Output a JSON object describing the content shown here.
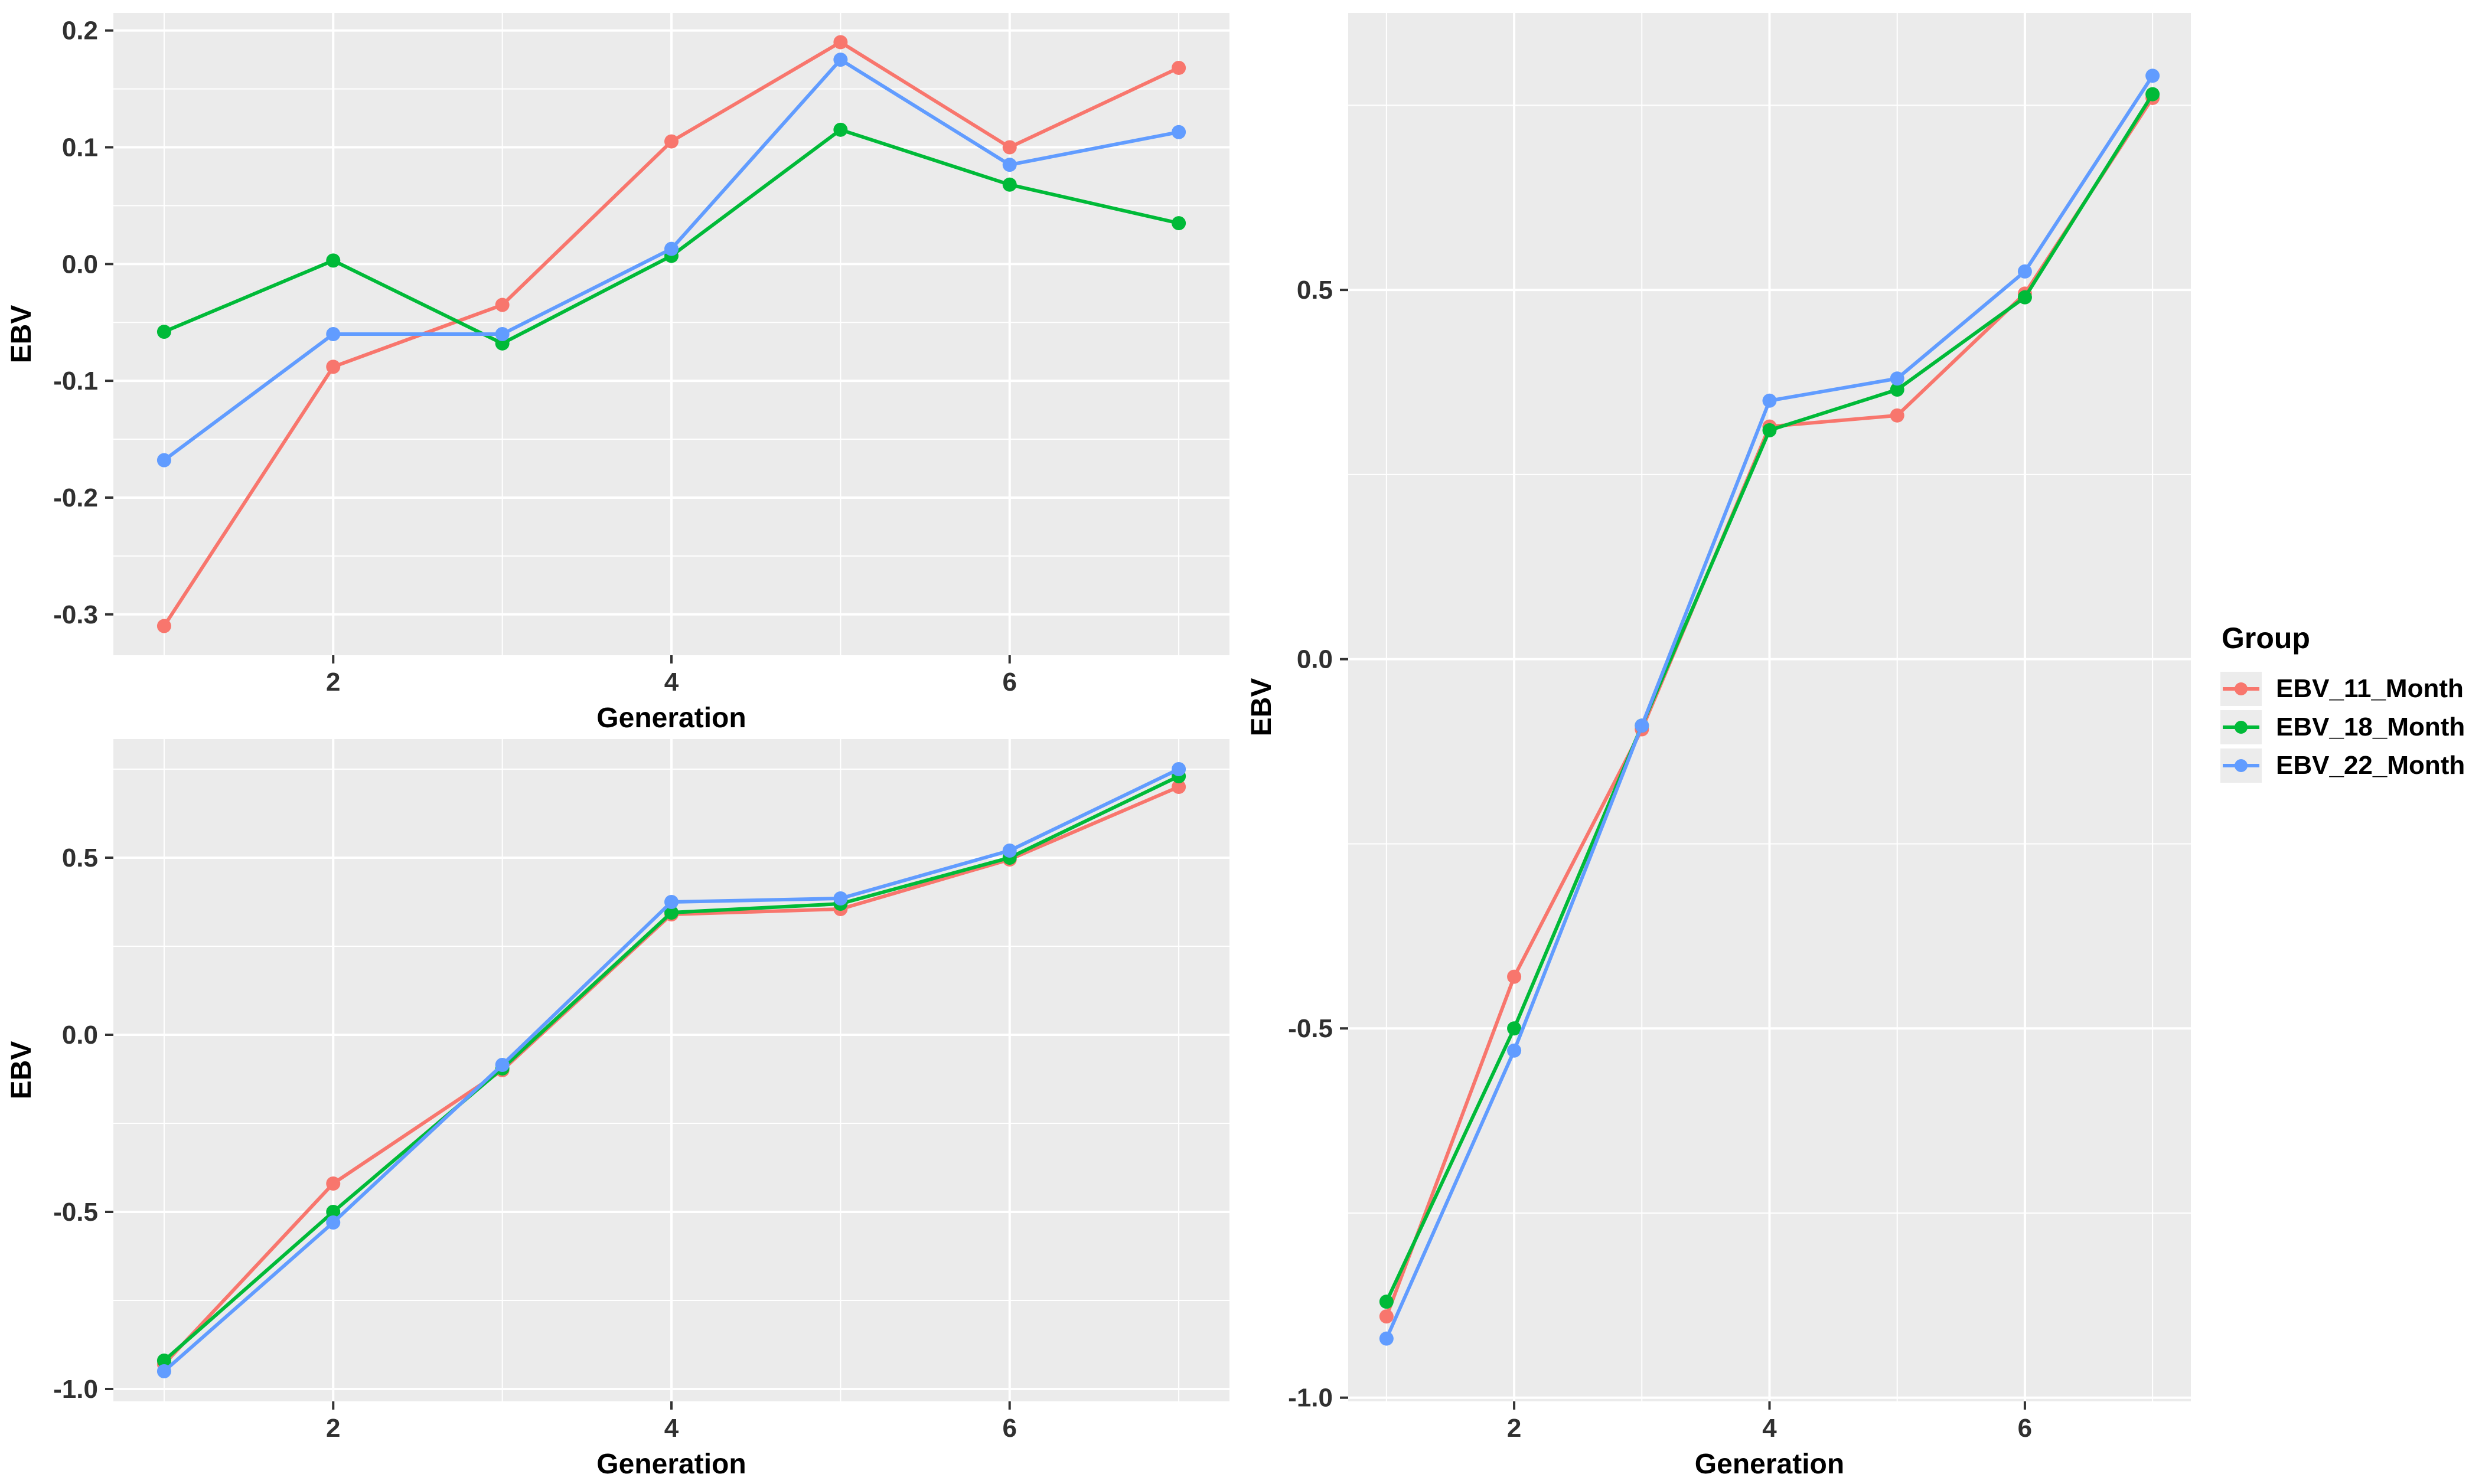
{
  "figure": {
    "panel_background": "#EBEBEB",
    "grid_color": "#FFFFFF",
    "tick_color": "#333333",
    "axis_text_color": "#303030",
    "axis_title_color": "#000000"
  },
  "legend": {
    "title": "Group",
    "entries": [
      {
        "label": "EBV_11_Month",
        "color": "#F8766D"
      },
      {
        "label": "EBV_18_Month",
        "color": "#00BA38"
      },
      {
        "label": "EBV_22_Month",
        "color": "#619CFF"
      }
    ]
  },
  "chart_data": [
    {
      "id": "top-left",
      "type": "line",
      "title": "",
      "xlabel": "Generation",
      "ylabel": "EBV",
      "x": [
        1,
        2,
        3,
        4,
        5,
        6,
        7
      ],
      "xlim": [
        0.7,
        7.3
      ],
      "ylim": [
        -0.335,
        0.215
      ],
      "xticks": [
        2,
        4,
        6
      ],
      "xtick_labels": [
        "2",
        "4",
        "6"
      ],
      "xminor": [
        1,
        3,
        5,
        7
      ],
      "yticks": [
        0.2,
        0.1,
        0.0,
        -0.1,
        -0.2,
        -0.3
      ],
      "ytick_labels": [
        "0.2",
        "0.1",
        "0.0",
        "-0.1",
        "-0.2",
        "-0.3"
      ],
      "yminor": [
        0.15,
        0.05,
        -0.05,
        -0.15,
        -0.25
      ],
      "grid": true,
      "legend_position": "none",
      "series": [
        {
          "name": "EBV_11_Month",
          "color": "#F8766D",
          "values": [
            -0.31,
            -0.088,
            -0.035,
            0.105,
            0.19,
            0.1,
            0.168
          ]
        },
        {
          "name": "EBV_18_Month",
          "color": "#00BA38",
          "values": [
            -0.058,
            0.003,
            -0.068,
            0.007,
            0.115,
            0.068,
            0.035
          ]
        },
        {
          "name": "EBV_22_Month",
          "color": "#619CFF",
          "values": [
            -0.168,
            -0.06,
            -0.06,
            0.013,
            0.175,
            0.085,
            0.113
          ]
        }
      ]
    },
    {
      "id": "bottom-left",
      "type": "line",
      "title": "",
      "xlabel": "Generation",
      "ylabel": "EBV",
      "x": [
        1,
        2,
        3,
        4,
        5,
        6,
        7
      ],
      "xlim": [
        0.7,
        7.3
      ],
      "ylim": [
        -1.035,
        0.835
      ],
      "xticks": [
        2,
        4,
        6
      ],
      "xtick_labels": [
        "2",
        "4",
        "6"
      ],
      "xminor": [
        1,
        3,
        5,
        7
      ],
      "yticks": [
        0.5,
        0.0,
        -0.5,
        -1.0
      ],
      "ytick_labels": [
        "0.5",
        "0.0",
        "-0.5",
        "-1.0"
      ],
      "yminor": [
        0.75,
        0.25,
        -0.25,
        -0.75
      ],
      "grid": true,
      "legend_position": "none",
      "series": [
        {
          "name": "EBV_11_Month",
          "color": "#F8766D",
          "values": [
            -0.93,
            -0.42,
            -0.1,
            0.34,
            0.355,
            0.495,
            0.7
          ]
        },
        {
          "name": "EBV_18_Month",
          "color": "#00BA38",
          "values": [
            -0.92,
            -0.5,
            -0.095,
            0.345,
            0.37,
            0.5,
            0.73
          ]
        },
        {
          "name": "EBV_22_Month",
          "color": "#619CFF",
          "values": [
            -0.95,
            -0.53,
            -0.085,
            0.375,
            0.385,
            0.52,
            0.75
          ]
        }
      ]
    },
    {
      "id": "right",
      "type": "line",
      "title": "",
      "xlabel": "Generation",
      "ylabel": "EBV",
      "x": [
        1,
        2,
        3,
        4,
        5,
        6,
        7
      ],
      "xlim": [
        0.7,
        7.3
      ],
      "ylim": [
        -1.005,
        0.875
      ],
      "xticks": [
        2,
        4,
        6
      ],
      "xtick_labels": [
        "2",
        "4",
        "6"
      ],
      "xminor": [
        1,
        3,
        5,
        7
      ],
      "yticks": [
        0.5,
        0.0,
        -0.5,
        -1.0
      ],
      "ytick_labels": [
        "0.5",
        "0.0",
        "-0.5",
        "-1.0"
      ],
      "yminor": [
        0.75,
        0.25,
        -0.25,
        -0.75
      ],
      "grid": true,
      "legend_position": "right",
      "series": [
        {
          "name": "EBV_11_Month",
          "color": "#F8766D",
          "values": [
            -0.89,
            -0.43,
            -0.095,
            0.315,
            0.33,
            0.495,
            0.76
          ]
        },
        {
          "name": "EBV_18_Month",
          "color": "#00BA38",
          "values": [
            -0.87,
            -0.5,
            -0.09,
            0.31,
            0.365,
            0.49,
            0.765
          ]
        },
        {
          "name": "EBV_22_Month",
          "color": "#619CFF",
          "values": [
            -0.92,
            -0.53,
            -0.09,
            0.35,
            0.38,
            0.525,
            0.79
          ]
        }
      ]
    }
  ]
}
